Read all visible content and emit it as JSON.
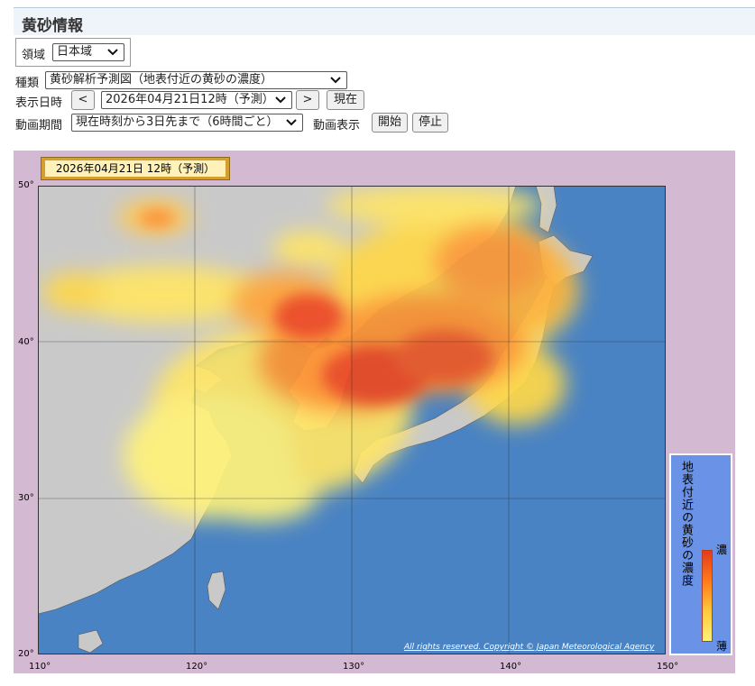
{
  "header": {
    "title": "黄砂情報"
  },
  "region": {
    "label": "領域",
    "value": "日本域"
  },
  "controls": {
    "type_label": "種類",
    "type_value": "黄砂解析予測図（地表付近の黄砂の濃度）",
    "datetime_label": "表示日時",
    "prev_label": "<",
    "datetime_value": "2026年04月21日12時（予測）",
    "next_label": ">",
    "now_label": "現在",
    "anim_period_label": "動画期間",
    "anim_period_value": "現在時刻から3日先まで（6時間ごと）",
    "anim_display_label": "動画表示",
    "start_label": "開始",
    "stop_label": "停止"
  },
  "map": {
    "date_label": "2026年04月21日 12時（予測）",
    "lat_labels": [
      "50°",
      "40°",
      "30°",
      "20°"
    ],
    "lon_labels": [
      "110°",
      "120°",
      "130°",
      "140°",
      "150°"
    ],
    "copyright": "All rights reserved. Copyright © Japan Meteorological Agency",
    "legend": {
      "title": "地表付近の黄砂の濃度",
      "high": "濃",
      "low": "薄"
    },
    "colors": {
      "sea": "#4a83c3",
      "land": "#c9c9c9",
      "frame": "#d3b9d2",
      "dust_low": "#fff27a",
      "dust_high": "#e33b1c"
    }
  }
}
